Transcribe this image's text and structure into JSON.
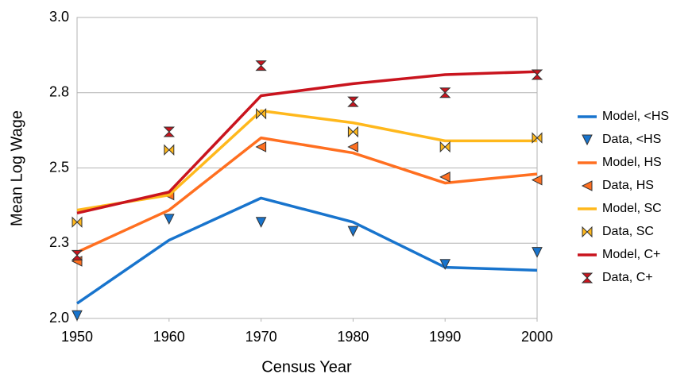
{
  "chart_data": {
    "type": "line",
    "x_label": "Census Year",
    "y_label": "Mean Log Wage",
    "x": [
      1950,
      1960,
      1970,
      1980,
      1990,
      2000
    ],
    "xlim": [
      1950,
      2000
    ],
    "xticks": [
      1950,
      1960,
      1970,
      1980,
      1990,
      2000
    ],
    "ylim": [
      2,
      3
    ],
    "yticks": [
      {
        "value": 2,
        "label": "2.0"
      },
      {
        "value": 2.25,
        "label": "2.3"
      },
      {
        "value": 2.5,
        "label": "2.5"
      },
      {
        "value": 2.75,
        "label": "2.8"
      },
      {
        "value": 3,
        "label": "3.0"
      }
    ],
    "grid": true,
    "legend": "right",
    "series": [
      {
        "name": "Model, <HS",
        "color": "#1874cd",
        "style": "line",
        "values": [
          2.05,
          2.26,
          2.4,
          2.32,
          2.17,
          2.16
        ]
      },
      {
        "name": "Data, <HS",
        "color": "#1874cd",
        "style": "marker",
        "marker": "tri-down",
        "values": [
          2.01,
          2.33,
          2.32,
          2.29,
          2.18,
          2.22
        ]
      },
      {
        "name": "Model, HS",
        "color": "#ff6f20",
        "style": "line",
        "values": [
          2.22,
          2.36,
          2.6,
          2.55,
          2.45,
          2.48
        ]
      },
      {
        "name": "Data, HS",
        "color": "#ff6f20",
        "style": "marker",
        "marker": "tri-left",
        "values": [
          2.19,
          2.41,
          2.57,
          2.57,
          2.47,
          2.46
        ]
      },
      {
        "name": "Model, SC",
        "color": "#ffb81c",
        "style": "line",
        "values": [
          2.36,
          2.41,
          2.69,
          2.65,
          2.59,
          2.59
        ]
      },
      {
        "name": "Data, SC",
        "color": "#ffb81c",
        "style": "marker",
        "marker": "bowtie",
        "values": [
          2.32,
          2.56,
          2.68,
          2.62,
          2.57,
          2.6
        ]
      },
      {
        "name": "Model, C+",
        "color": "#c9141e",
        "style": "line",
        "values": [
          2.35,
          2.42,
          2.74,
          2.78,
          2.81,
          2.82
        ]
      },
      {
        "name": "Data, C+",
        "color": "#c9141e",
        "style": "marker",
        "marker": "hourglass",
        "values": [
          2.21,
          2.62,
          2.84,
          2.72,
          2.75,
          2.81
        ]
      }
    ]
  }
}
